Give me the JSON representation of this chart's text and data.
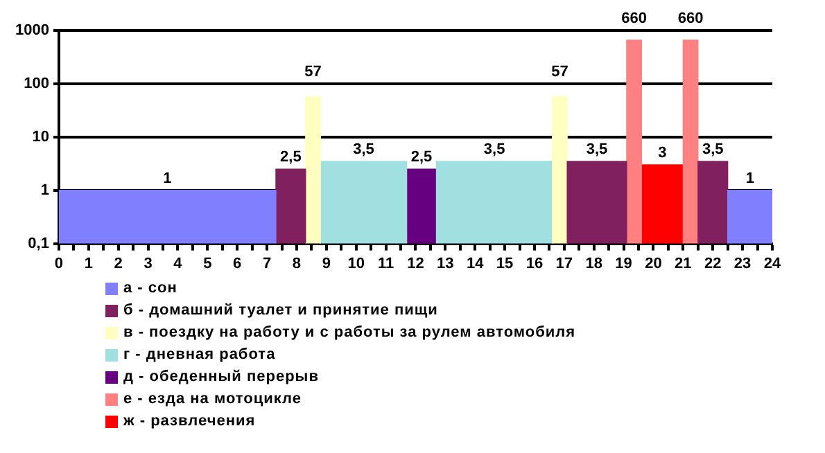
{
  "chart_data": {
    "type": "histogram",
    "bins": [
      0,
      7.3,
      8.3,
      8.8,
      11.7,
      12.7,
      16.6,
      17.1,
      19.1,
      19.6,
      21.0,
      21.5,
      22.5,
      24
    ],
    "series": [
      {
        "name": "а - сон",
        "color": "#8080ff",
        "values": [
          1,
          null,
          null,
          null,
          null,
          null,
          null,
          null,
          null,
          null,
          null,
          null,
          1
        ],
        "value_labels": [
          "1",
          null,
          null,
          null,
          null,
          null,
          null,
          null,
          null,
          null,
          null,
          null,
          "1"
        ]
      },
      {
        "name": "б - домашний туалет и принятие пищи",
        "color": "#80205f",
        "values": [
          null,
          2.5,
          null,
          null,
          null,
          null,
          null,
          3.5,
          null,
          null,
          null,
          3.5,
          null
        ],
        "value_labels": [
          null,
          "2,5",
          null,
          null,
          null,
          null,
          null,
          "3,5",
          null,
          null,
          null,
          "3,5",
          null
        ]
      },
      {
        "name": "в - поездку на работу и с работы за рулем автомобиля",
        "color": "#ffffc0",
        "values": [
          null,
          null,
          57,
          null,
          null,
          null,
          57,
          null,
          null,
          null,
          null,
          null,
          null
        ],
        "value_labels": [
          null,
          null,
          "57",
          null,
          null,
          null,
          "57",
          null,
          null,
          null,
          null,
          null,
          null
        ]
      },
      {
        "name": "г - дневная работа",
        "color": "#a0e0e0",
        "values": [
          null,
          null,
          null,
          3.5,
          null,
          3.5,
          null,
          null,
          null,
          null,
          null,
          null,
          null
        ],
        "value_labels": [
          null,
          null,
          null,
          "3,5",
          null,
          "3,5",
          null,
          null,
          null,
          null,
          null,
          null,
          null
        ]
      },
      {
        "name": "д - обеденный перерыв",
        "color": "#660080",
        "values": [
          null,
          null,
          null,
          null,
          2.5,
          null,
          null,
          null,
          null,
          null,
          null,
          null,
          null
        ],
        "value_labels": [
          null,
          null,
          null,
          null,
          "2,5",
          null,
          null,
          null,
          null,
          null,
          null,
          null,
          null
        ]
      },
      {
        "name": "е - езда на мотоцикле",
        "color": "#ff8080",
        "values": [
          null,
          null,
          null,
          null,
          null,
          null,
          null,
          null,
          660,
          null,
          660,
          null,
          null
        ],
        "value_labels": [
          null,
          null,
          null,
          null,
          null,
          null,
          null,
          null,
          "660",
          null,
          "660",
          null,
          null
        ]
      },
      {
        "name": "ж - развлечения",
        "color": "#ff0000",
        "values": [
          null,
          null,
          null,
          null,
          null,
          null,
          null,
          null,
          null,
          3,
          null,
          null,
          null
        ],
        "value_labels": [
          null,
          null,
          null,
          null,
          null,
          null,
          null,
          null,
          null,
          "3",
          null,
          null,
          null
        ]
      }
    ],
    "log": "y",
    "ylim": [
      0.1,
      1000
    ],
    "yticks": [
      {
        "value": 0.1,
        "label": "0,1"
      },
      1,
      10,
      100,
      1000
    ],
    "xlim": [
      0,
      24
    ],
    "xticks": [
      0,
      {
        "value": 0.5,
        "label": null
      },
      1,
      {
        "value": 1.5,
        "label": null
      },
      2,
      {
        "value": 2.5,
        "label": null
      },
      3,
      {
        "value": 3.5,
        "label": null
      },
      4,
      {
        "value": 4.5,
        "label": null
      },
      5,
      {
        "value": 5.5,
        "label": null
      },
      6,
      {
        "value": 6.5,
        "label": null
      },
      7,
      {
        "value": 7.5,
        "label": null
      },
      8,
      {
        "value": 8.5,
        "label": null
      },
      9,
      {
        "value": 9.5,
        "label": null
      },
      10,
      {
        "value": 10.5,
        "label": null
      },
      11,
      {
        "value": 11.5,
        "label": null
      },
      12,
      {
        "value": 12.5,
        "label": null
      },
      13,
      {
        "value": 13.5,
        "label": null
      },
      14,
      {
        "value": 14.5,
        "label": null
      },
      15,
      {
        "value": 15.5,
        "label": null
      },
      16,
      {
        "value": 16.5,
        "label": null
      },
      17,
      {
        "value": 17.5,
        "label": null
      },
      18,
      {
        "value": 18.5,
        "label": null
      },
      19,
      {
        "value": 19.5,
        "label": null
      },
      20,
      {
        "value": 20.5,
        "label": null
      },
      21,
      {
        "value": 21.5,
        "label": null
      },
      22,
      {
        "value": 22.5,
        "label": null
      },
      23,
      {
        "value": 23.5,
        "label": null
      },
      24
    ],
    "grid": "y",
    "legend": "bottom"
  }
}
